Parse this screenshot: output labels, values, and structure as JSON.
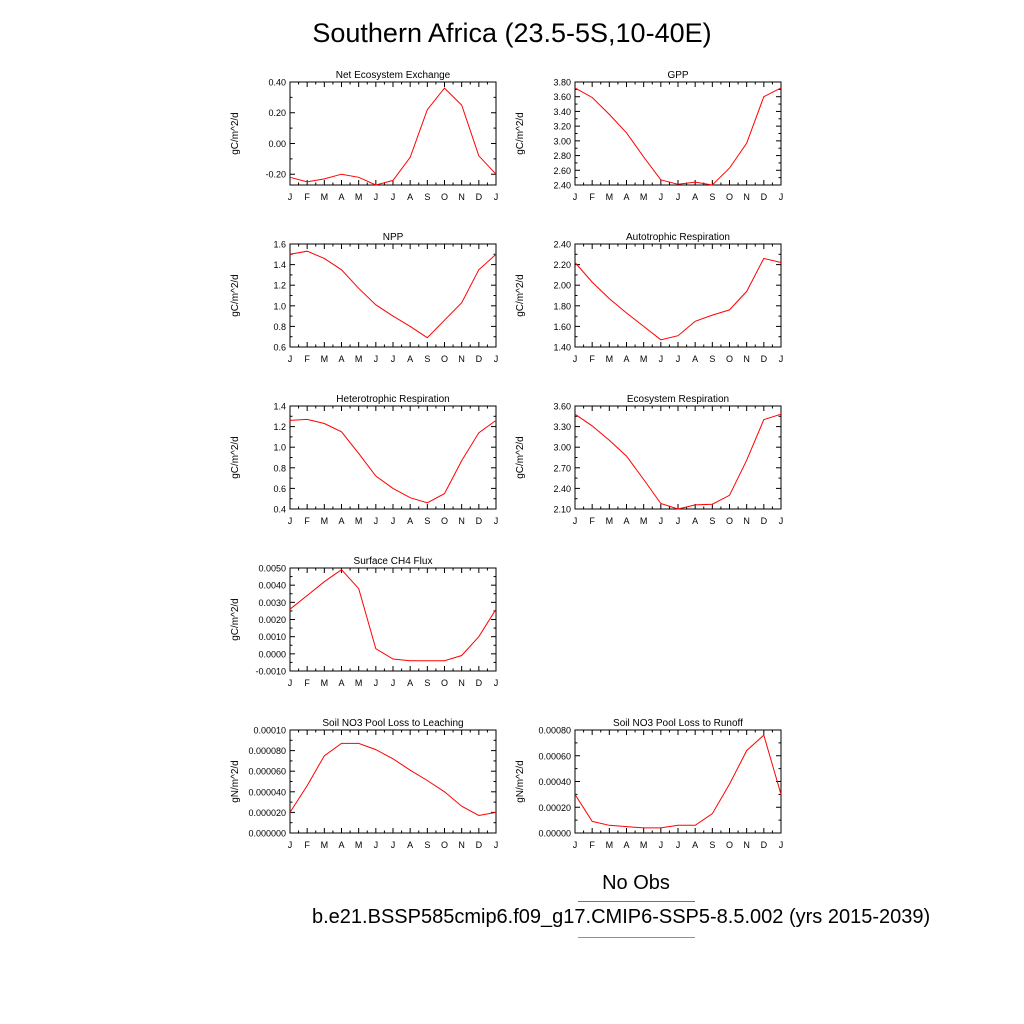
{
  "page": {
    "title": "Southern Africa (23.5-5S,10-40E)",
    "legend": [
      {
        "label": "No Obs",
        "color": "#5566ee"
      },
      {
        "label": "b.e21.BSSP585cmip6.f09_g17.CMIP6-SSP5-8.5.002 (yrs 2015-2039)",
        "color": "#ee6677"
      }
    ]
  },
  "chart_data": [
    {
      "type": "line",
      "title": "Net Ecosystem Exchange",
      "ylabel": "gC/m^2/d",
      "categories": [
        "J",
        "F",
        "M",
        "A",
        "M",
        "J",
        "J",
        "A",
        "S",
        "O",
        "N",
        "D",
        "J"
      ],
      "ylim": [
        -0.27,
        0.4
      ],
      "yticks": [
        -0.2,
        0.0,
        0.2,
        0.4
      ],
      "ytick_labels": [
        "-0.20",
        "0.00",
        "0.20",
        "0.40"
      ],
      "series": [
        {
          "color": "#ff0000",
          "values": [
            -0.22,
            -0.25,
            -0.23,
            -0.2,
            -0.22,
            -0.27,
            -0.24,
            -0.09,
            0.22,
            0.36,
            0.25,
            -0.08,
            -0.2
          ]
        }
      ]
    },
    {
      "type": "line",
      "title": "GPP",
      "ylabel": "gC/m^2/d",
      "categories": [
        "J",
        "F",
        "M",
        "A",
        "M",
        "J",
        "J",
        "A",
        "S",
        "O",
        "N",
        "D",
        "J"
      ],
      "ylim": [
        2.4,
        3.8
      ],
      "yticks": [
        2.4,
        2.6,
        2.8,
        3.0,
        3.2,
        3.4,
        3.6,
        3.8
      ],
      "ytick_labels": [
        "2.40",
        "2.60",
        "2.80",
        "3.00",
        "3.20",
        "3.40",
        "3.60",
        "3.80"
      ],
      "series": [
        {
          "color": "#ff0000",
          "values": [
            3.72,
            3.59,
            3.36,
            3.11,
            2.78,
            2.47,
            2.41,
            2.44,
            2.4,
            2.63,
            2.97,
            3.6,
            3.72
          ]
        }
      ]
    },
    {
      "type": "line",
      "title": "NPP",
      "ylabel": "gC/m^2/d",
      "categories": [
        "J",
        "F",
        "M",
        "A",
        "M",
        "J",
        "J",
        "A",
        "S",
        "O",
        "N",
        "D",
        "J"
      ],
      "ylim": [
        0.6,
        1.6
      ],
      "yticks": [
        0.6,
        0.8,
        1.0,
        1.2,
        1.4,
        1.6
      ],
      "ytick_labels": [
        "0.6",
        "0.8",
        "1.0",
        "1.2",
        "1.4",
        "1.6"
      ],
      "series": [
        {
          "color": "#ff0000",
          "values": [
            1.5,
            1.53,
            1.46,
            1.35,
            1.17,
            1.01,
            0.9,
            0.8,
            0.69,
            0.86,
            1.03,
            1.35,
            1.5
          ]
        }
      ]
    },
    {
      "type": "line",
      "title": "Autotrophic Respiration",
      "ylabel": "gC/m^2/d",
      "categories": [
        "J",
        "F",
        "M",
        "A",
        "M",
        "J",
        "J",
        "A",
        "S",
        "O",
        "N",
        "D",
        "J"
      ],
      "ylim": [
        1.4,
        2.4
      ],
      "yticks": [
        1.4,
        1.6,
        1.8,
        2.0,
        2.2,
        2.4
      ],
      "ytick_labels": [
        "1.40",
        "1.60",
        "1.80",
        "2.00",
        "2.20",
        "2.40"
      ],
      "series": [
        {
          "color": "#ff0000",
          "values": [
            2.22,
            2.03,
            1.87,
            1.73,
            1.6,
            1.47,
            1.51,
            1.65,
            1.71,
            1.76,
            1.94,
            2.26,
            2.22
          ]
        }
      ]
    },
    {
      "type": "line",
      "title": "Heterotrophic Respiration",
      "ylabel": "gC/m^2/d",
      "categories": [
        "J",
        "F",
        "M",
        "A",
        "M",
        "J",
        "J",
        "A",
        "S",
        "O",
        "N",
        "D",
        "J"
      ],
      "ylim": [
        0.4,
        1.4
      ],
      "yticks": [
        0.4,
        0.6,
        0.8,
        1.0,
        1.2,
        1.4
      ],
      "ytick_labels": [
        "0.4",
        "0.6",
        "0.8",
        "1.0",
        "1.2",
        "1.4"
      ],
      "series": [
        {
          "color": "#ff0000",
          "values": [
            1.26,
            1.27,
            1.23,
            1.15,
            0.94,
            0.72,
            0.6,
            0.51,
            0.46,
            0.55,
            0.87,
            1.14,
            1.26
          ]
        }
      ]
    },
    {
      "type": "line",
      "title": "Ecosystem Respiration",
      "ylabel": "gC/m^2/d",
      "categories": [
        "J",
        "F",
        "M",
        "A",
        "M",
        "J",
        "J",
        "A",
        "S",
        "O",
        "N",
        "D",
        "J"
      ],
      "ylim": [
        2.1,
        3.6
      ],
      "yticks": [
        2.1,
        2.4,
        2.7,
        3.0,
        3.3,
        3.6
      ],
      "ytick_labels": [
        "2.10",
        "2.40",
        "2.70",
        "3.00",
        "3.30",
        "3.60"
      ],
      "series": [
        {
          "color": "#ff0000",
          "values": [
            3.48,
            3.31,
            3.1,
            2.87,
            2.53,
            2.18,
            2.1,
            2.16,
            2.17,
            2.3,
            2.81,
            3.4,
            3.48
          ]
        }
      ]
    },
    {
      "type": "line",
      "title": "Surface CH4 Flux",
      "ylabel": "gC/m^2/d",
      "categories": [
        "J",
        "F",
        "M",
        "A",
        "M",
        "J",
        "J",
        "A",
        "S",
        "O",
        "N",
        "D",
        "J"
      ],
      "ylim": [
        -0.001,
        0.005
      ],
      "yticks": [
        -0.001,
        0.0,
        0.001,
        0.002,
        0.003,
        0.004,
        0.005
      ],
      "ytick_labels": [
        "-0.0010",
        "0.0000",
        "0.0010",
        "0.0020",
        "0.0030",
        "0.0040",
        "0.0050"
      ],
      "series": [
        {
          "color": "#ff0000",
          "values": [
            0.0026,
            0.0034,
            0.0042,
            0.0049,
            0.0038,
            0.0003,
            -0.0003,
            -0.0004,
            -0.0004,
            -0.0004,
            -0.0001,
            0.001,
            0.0026
          ]
        }
      ]
    },
    {
      "type": "line",
      "title": "Soil NO3 Pool Loss to Leaching",
      "ylabel": "gN/m^2/d",
      "categories": [
        "J",
        "F",
        "M",
        "A",
        "M",
        "J",
        "J",
        "A",
        "S",
        "O",
        "N",
        "D",
        "J"
      ],
      "ylim": [
        0.0,
        0.0001
      ],
      "yticks": [
        0.0,
        2e-05,
        4e-05,
        6e-05,
        8e-05,
        0.0001
      ],
      "ytick_labels": [
        "0.000000",
        "0.000020",
        "0.000040",
        "0.000060",
        "0.000080",
        "0.00010"
      ],
      "series": [
        {
          "color": "#ff0000",
          "values": [
            2e-05,
            4.6e-05,
            7.5e-05,
            8.7e-05,
            8.7e-05,
            8.1e-05,
            7.2e-05,
            6.1e-05,
            5.1e-05,
            4e-05,
            2.6e-05,
            1.7e-05,
            2e-05
          ]
        }
      ]
    },
    {
      "type": "line",
      "title": "Soil NO3 Pool Loss to Runoff",
      "ylabel": "gN/m^2/d",
      "categories": [
        "J",
        "F",
        "M",
        "A",
        "M",
        "J",
        "J",
        "A",
        "S",
        "O",
        "N",
        "D",
        "J"
      ],
      "ylim": [
        0.0,
        0.0008
      ],
      "yticks": [
        0.0,
        0.0002,
        0.0004,
        0.0006,
        0.0008
      ],
      "ytick_labels": [
        "0.00000",
        "0.00020",
        "0.00040",
        "0.00060",
        "0.00080"
      ],
      "series": [
        {
          "color": "#ff0000",
          "values": [
            0.0003,
            9e-05,
            6e-05,
            5e-05,
            4e-05,
            4e-05,
            6e-05,
            6e-05,
            0.00015,
            0.00038,
            0.00064,
            0.00076,
            0.0003
          ]
        }
      ]
    }
  ]
}
